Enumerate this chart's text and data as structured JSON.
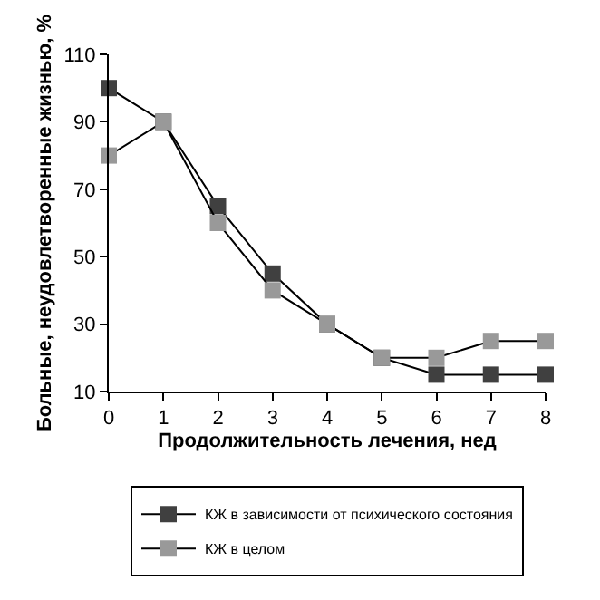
{
  "chart_data": {
    "type": "line",
    "xlabel": "Продолжительность лечения, нед",
    "ylabel": "Больные, неудовлетворенные жизнью, %",
    "x": [
      0,
      1,
      2,
      3,
      4,
      5,
      6,
      7,
      8
    ],
    "series": [
      {
        "name": "КЖ в зависимости от психического состояния",
        "color": "#404040",
        "values": [
          100,
          90,
          65,
          45,
          30,
          20,
          15,
          15,
          15
        ]
      },
      {
        "name": "КЖ в целом",
        "color": "#999999",
        "values": [
          80,
          90,
          60,
          40,
          30,
          20,
          20,
          25,
          25
        ]
      }
    ],
    "xlim": [
      0,
      8
    ],
    "xticks": [
      0,
      1,
      2,
      3,
      4,
      5,
      6,
      7,
      8
    ],
    "ylim": [
      10,
      110
    ],
    "yticks": [
      10,
      30,
      50,
      70,
      90,
      110
    ],
    "grid": false,
    "legend": "bottom",
    "marker": "square",
    "line_style": "solid"
  }
}
